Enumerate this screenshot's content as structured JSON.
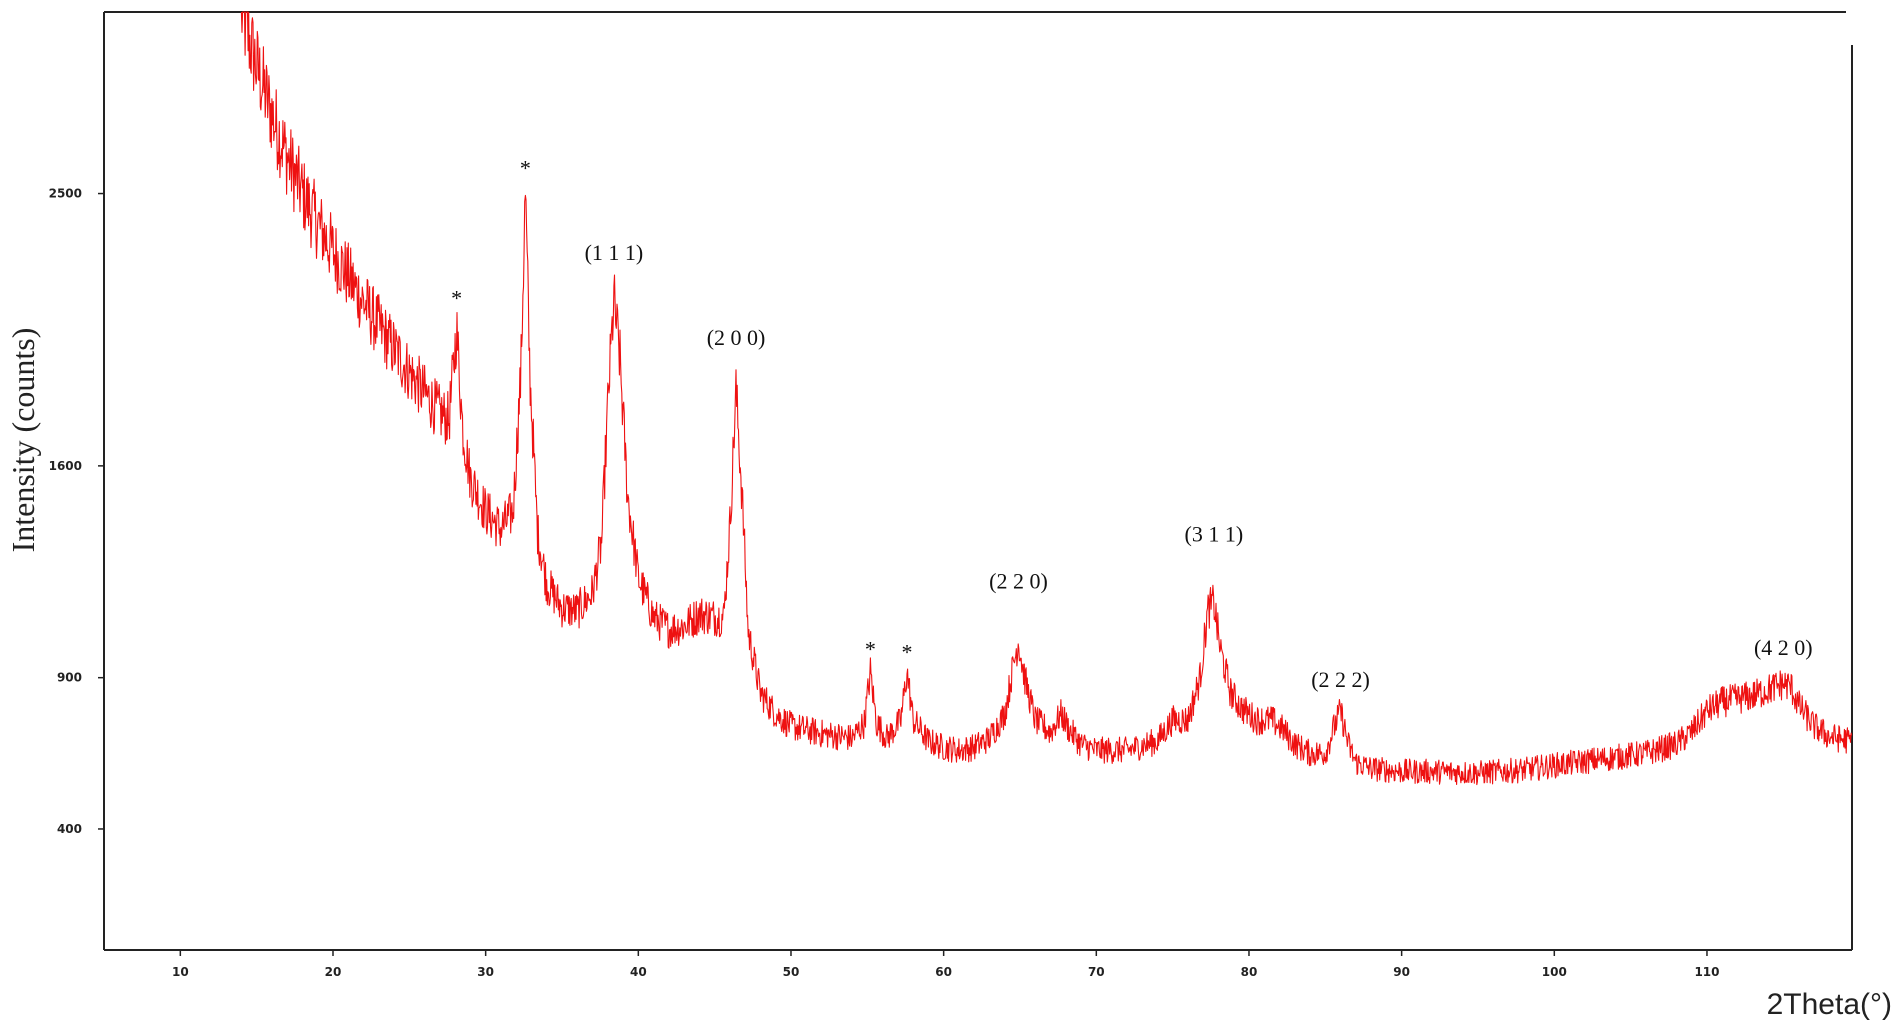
{
  "chart_data": {
    "type": "line",
    "title": "",
    "xlabel": "2Theta(°)",
    "ylabel": "Intensity (counts)",
    "xlim": [
      5,
      119.5
    ],
    "ylim": [
      0,
      3100
    ],
    "x_ticks": [
      10,
      20,
      30,
      40,
      50,
      60,
      70,
      80,
      90,
      100,
      110
    ],
    "y_ticks": [
      400,
      900,
      1600,
      2500
    ],
    "grid": false,
    "legend": "none",
    "series": [
      {
        "color": "#ee1111",
        "points": [
          [
            14.0,
            3100
          ],
          [
            15.0,
            2920
          ],
          [
            16.0,
            2760
          ],
          [
            17.0,
            2620
          ],
          [
            18.0,
            2500
          ],
          [
            19.0,
            2400
          ],
          [
            20.0,
            2310
          ],
          [
            21.0,
            2225
          ],
          [
            22.0,
            2140
          ],
          [
            23.0,
            2060
          ],
          [
            24.0,
            1985
          ],
          [
            25.0,
            1910
          ],
          [
            26.0,
            1840
          ],
          [
            27.0,
            1775
          ],
          [
            27.6,
            1750
          ],
          [
            28.1,
            2050
          ],
          [
            28.5,
            1720
          ],
          [
            29.0,
            1560
          ],
          [
            30.0,
            1450
          ],
          [
            31.0,
            1390
          ],
          [
            31.8,
            1450
          ],
          [
            32.3,
            1900
          ],
          [
            32.6,
            2500
          ],
          [
            32.9,
            1900
          ],
          [
            33.4,
            1380
          ],
          [
            34.0,
            1210
          ],
          [
            35.0,
            1130
          ],
          [
            36.0,
            1120
          ],
          [
            37.0,
            1180
          ],
          [
            37.6,
            1350
          ],
          [
            38.0,
            1800
          ],
          [
            38.4,
            2150
          ],
          [
            38.8,
            1950
          ],
          [
            39.3,
            1500
          ],
          [
            40.0,
            1230
          ],
          [
            41.0,
            1100
          ],
          [
            42.0,
            1060
          ],
          [
            43.0,
            1070
          ],
          [
            44.0,
            1110
          ],
          [
            45.0,
            1100
          ],
          [
            45.6,
            1100
          ],
          [
            46.0,
            1400
          ],
          [
            46.4,
            1850
          ],
          [
            46.8,
            1500
          ],
          [
            47.2,
            1050
          ],
          [
            48.0,
            850
          ],
          [
            49.0,
            780
          ],
          [
            50.0,
            740
          ],
          [
            52.0,
            715
          ],
          [
            54.0,
            700
          ],
          [
            54.8,
            750
          ],
          [
            55.2,
            920
          ],
          [
            55.6,
            750
          ],
          [
            56.3,
            700
          ],
          [
            57.2,
            760
          ],
          [
            57.6,
            920
          ],
          [
            58.0,
            760
          ],
          [
            59.0,
            690
          ],
          [
            60.0,
            670
          ],
          [
            61.0,
            660
          ],
          [
            62.0,
            670
          ],
          [
            63.0,
            700
          ],
          [
            64.0,
            780
          ],
          [
            64.6,
            950
          ],
          [
            64.9,
            1020
          ],
          [
            65.3,
            900
          ],
          [
            66.0,
            760
          ],
          [
            67.0,
            720
          ],
          [
            67.7,
            780
          ],
          [
            68.2,
            730
          ],
          [
            69.0,
            680
          ],
          [
            70.0,
            660
          ],
          [
            72.0,
            660
          ],
          [
            74.0,
            690
          ],
          [
            75.0,
            760
          ],
          [
            76.0,
            760
          ],
          [
            76.8,
            900
          ],
          [
            77.3,
            1120
          ],
          [
            77.7,
            1150
          ],
          [
            78.1,
            1000
          ],
          [
            78.8,
            850
          ],
          [
            79.5,
            800
          ],
          [
            80.5,
            760
          ],
          [
            81.5,
            760
          ],
          [
            82.2,
            730
          ],
          [
            83.0,
            680
          ],
          [
            84.0,
            650
          ],
          [
            85.0,
            650
          ],
          [
            85.6,
            740
          ],
          [
            86.0,
            790
          ],
          [
            86.5,
            680
          ],
          [
            87.0,
            620
          ],
          [
            88.0,
            600
          ],
          [
            90.0,
            590
          ],
          [
            92.0,
            590
          ],
          [
            95.0,
            585
          ],
          [
            98.0,
            595
          ],
          [
            100.0,
            610
          ],
          [
            103.0,
            630
          ],
          [
            106.0,
            650
          ],
          [
            108.0,
            680
          ],
          [
            109.0,
            720
          ],
          [
            110.0,
            790
          ],
          [
            111.0,
            820
          ],
          [
            112.0,
            830
          ],
          [
            113.0,
            840
          ],
          [
            114.0,
            860
          ],
          [
            115.0,
            880
          ],
          [
            115.5,
            870
          ],
          [
            116.0,
            810
          ],
          [
            117.0,
            740
          ],
          [
            118.0,
            705
          ],
          [
            119.5,
            690
          ]
        ]
      }
    ],
    "annotations": [
      {
        "text": "*",
        "x": 28.1,
        "y": 2130
      },
      {
        "text": "*",
        "x": 32.6,
        "y": 2560
      },
      {
        "text": "(1 1 1)",
        "x": 38.4,
        "y": 2280
      },
      {
        "text": "(2 0 0)",
        "x": 46.4,
        "y": 2000
      },
      {
        "text": "*",
        "x": 55.2,
        "y": 970
      },
      {
        "text": "*",
        "x": 57.6,
        "y": 960
      },
      {
        "text": "(2 2 0)",
        "x": 64.9,
        "y": 1195
      },
      {
        "text": "(3 1 1)",
        "x": 77.7,
        "y": 1350
      },
      {
        "text": "(2 2 2)",
        "x": 86.0,
        "y": 870
      },
      {
        "text": "(4 2 0)",
        "x": 115.0,
        "y": 975
      }
    ]
  }
}
